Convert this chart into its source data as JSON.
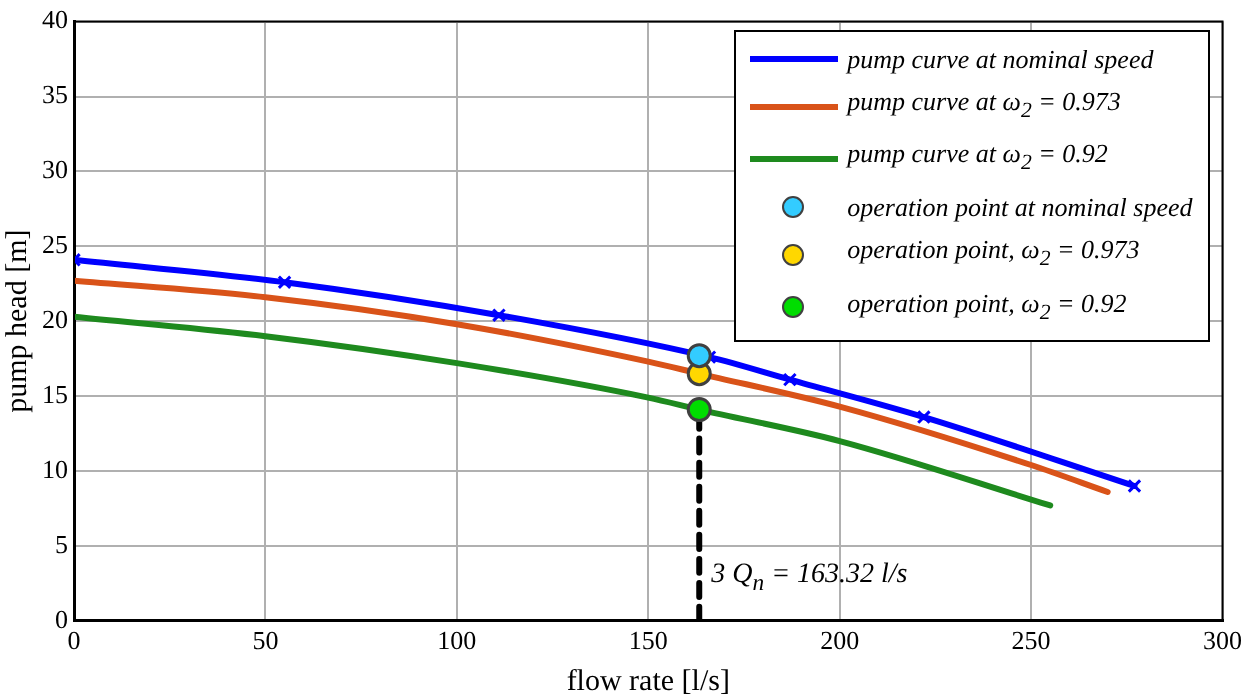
{
  "chart_data": {
    "type": "line",
    "xlabel": "flow rate [l/s]",
    "ylabel": "pump head [m]",
    "xlim": [
      0,
      300
    ],
    "xticks": [
      0,
      50,
      100,
      150,
      200,
      250,
      300
    ],
    "ylim": [
      0,
      40
    ],
    "yticks": [
      0,
      5,
      10,
      15,
      20,
      25,
      30,
      35,
      40
    ],
    "grid": true,
    "legend": "top right",
    "series": [
      {
        "name": "pump curve at nominal speed",
        "color": "#0000ff",
        "marker": "cross",
        "x": [
          0,
          55,
          111,
          166,
          187,
          222,
          277
        ],
        "values": [
          24.1,
          22.6,
          20.4,
          17.6,
          16.1,
          13.6,
          9.0
        ]
      },
      {
        "name": "pump curve at ω$_{2}$ = 0.973",
        "color": "#d95319",
        "marker": "none",
        "x": [
          0,
          50,
          100,
          150,
          163.32,
          200,
          250,
          270
        ],
        "values": [
          22.7,
          21.6,
          19.8,
          17.3,
          16.5,
          14.3,
          10.4,
          8.6
        ]
      },
      {
        "name": "pump curve at ω$_{2}$ = 0.92",
        "color": "#1e8a1e",
        "marker": "none",
        "x": [
          0,
          50,
          100,
          150,
          163.32,
          200,
          255
        ],
        "values": [
          20.3,
          19.0,
          17.2,
          14.9,
          14.1,
          12.0,
          7.7
        ]
      },
      {
        "name": "operation point at nominal speed",
        "type": "scatter",
        "color": "#33ccff",
        "marker": "circle",
        "x": [
          163.32
        ],
        "values": [
          17.7
        ]
      },
      {
        "name": "operation point, ω$_{2}$ = 0.973",
        "type": "scatter",
        "color": "#ffd700",
        "marker": "circle",
        "x": [
          163.32
        ],
        "values": [
          16.5
        ]
      },
      {
        "name": "operation point, ω$_{2}$ = 0.92",
        "type": "scatter",
        "color": "#00dd00",
        "marker": "circle",
        "x": [
          163.32
        ],
        "values": [
          14.1
        ]
      },
      {
        "color": "#000000",
        "marker": "none",
        "line_style": "dashed",
        "x": [
          163.32,
          163.32
        ],
        "values": [
          0,
          14.1
        ]
      }
    ],
    "annotations": [
      {
        "text": "3 Q$_{n}$ = 163.32 l/s",
        "x": 163.32,
        "y": 2.8
      }
    ]
  }
}
